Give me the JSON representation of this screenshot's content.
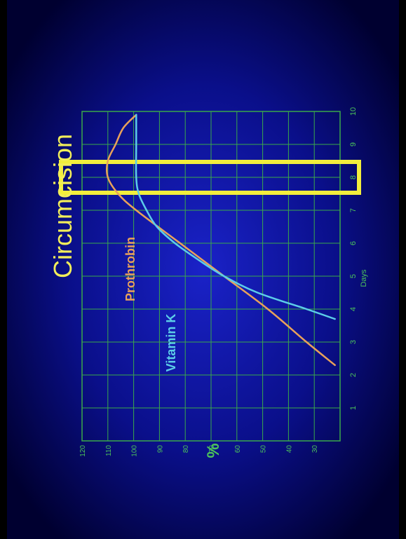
{
  "slide": {
    "title": "Circumcision"
  },
  "chart_data": {
    "type": "line",
    "orientation": "rotated-90-clockwise",
    "title": "Circumcision",
    "xlabel": "Days",
    "ylabel": "%",
    "xlim": [
      0,
      10
    ],
    "ylim": [
      20,
      120
    ],
    "x_ticks": [
      "1",
      "2",
      "3",
      "4",
      "5",
      "6",
      "7",
      "8",
      "9",
      "10"
    ],
    "y_ticks": [
      "120",
      "110",
      "100",
      "90",
      "80",
      "70",
      "60",
      "50",
      "40",
      "30"
    ],
    "grid": true,
    "highlight_x": 8,
    "series": [
      {
        "name": "Prothrobin",
        "color": "#e8a15a",
        "points": [
          [
            2.3,
            22
          ],
          [
            3,
            33
          ],
          [
            4,
            48
          ],
          [
            5,
            65
          ],
          [
            6,
            82
          ],
          [
            7,
            99
          ],
          [
            7.5,
            106
          ],
          [
            8,
            110
          ],
          [
            8.5,
            110
          ],
          [
            9,
            107
          ],
          [
            9.5,
            104
          ],
          [
            9.9,
            99
          ]
        ]
      },
      {
        "name": "Vitamin K",
        "color": "#5ccde8",
        "points": [
          [
            3.7,
            22
          ],
          [
            4,
            33
          ],
          [
            4.5,
            52
          ],
          [
            5,
            65
          ],
          [
            5.5,
            75
          ],
          [
            6,
            84
          ],
          [
            6.5,
            91
          ],
          [
            7,
            95
          ],
          [
            7.5,
            98
          ],
          [
            8,
            99
          ],
          [
            9,
            99
          ],
          [
            9.9,
            99
          ]
        ]
      }
    ],
    "colors": {
      "grid": "#3aa94a",
      "tick_text": "#4cc35a",
      "title": "#f2ee5a",
      "highlight": "#f2ee3c"
    }
  }
}
